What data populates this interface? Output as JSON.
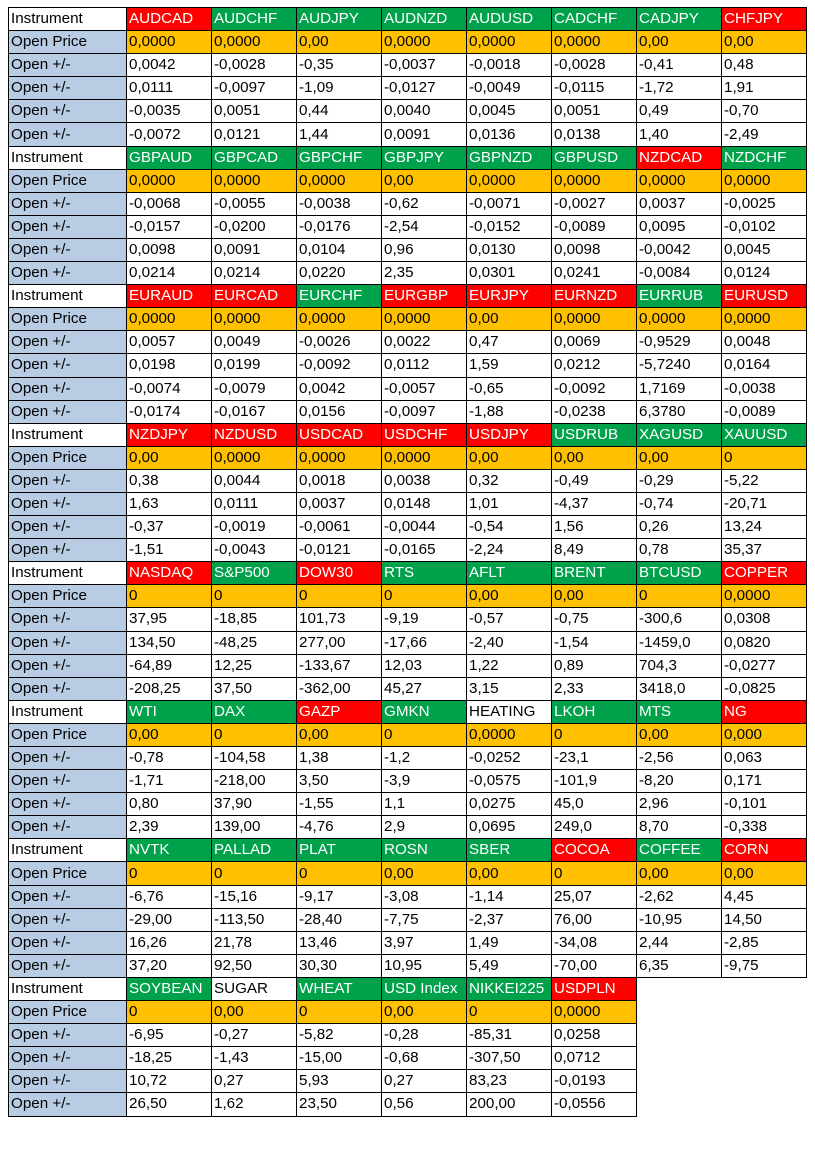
{
  "labels": {
    "instrument": "Instrument",
    "open_price": "Open Price",
    "open_change": "Open +/-"
  },
  "colors": {
    "red": "#ff0000",
    "green": "#00a14b",
    "open_price_bg": "#ffc000",
    "label_bg": "#b8cce4"
  },
  "blocks": [
    {
      "instruments": [
        {
          "name": "AUDCAD",
          "color": "red"
        },
        {
          "name": "AUDCHF",
          "color": "green"
        },
        {
          "name": "AUDJPY",
          "color": "green"
        },
        {
          "name": "AUDNZD",
          "color": "green"
        },
        {
          "name": "AUDUSD",
          "color": "green"
        },
        {
          "name": "CADCHF",
          "color": "green"
        },
        {
          "name": "CADJPY",
          "color": "green"
        },
        {
          "name": "CHFJPY",
          "color": "red"
        }
      ],
      "open_price": [
        "0,0000",
        "0,0000",
        "0,00",
        "0,0000",
        "0,0000",
        "0,0000",
        "0,00",
        "0,00"
      ],
      "changes": [
        [
          "0,0042",
          "-0,0028",
          "-0,35",
          "-0,0037",
          "-0,0018",
          "-0,0028",
          "-0,41",
          "0,48"
        ],
        [
          "0,0111",
          "-0,0097",
          "-1,09",
          "-0,0127",
          "-0,0049",
          "-0,0115",
          "-1,72",
          "1,91"
        ],
        [
          "-0,0035",
          "0,0051",
          "0,44",
          "0,0040",
          "0,0045",
          "0,0051",
          "0,49",
          "-0,70"
        ],
        [
          "-0,0072",
          "0,0121",
          "1,44",
          "0,0091",
          "0,0136",
          "0,0138",
          "1,40",
          "-2,49"
        ]
      ]
    },
    {
      "instruments": [
        {
          "name": "GBPAUD",
          "color": "green"
        },
        {
          "name": "GBPCAD",
          "color": "green"
        },
        {
          "name": "GBPCHF",
          "color": "green"
        },
        {
          "name": "GBPJPY",
          "color": "green"
        },
        {
          "name": "GBPNZD",
          "color": "green"
        },
        {
          "name": "GBPUSD",
          "color": "green"
        },
        {
          "name": "NZDCAD",
          "color": "red"
        },
        {
          "name": "NZDCHF",
          "color": "green"
        }
      ],
      "open_price": [
        "0,0000",
        "0,0000",
        "0,0000",
        "0,00",
        "0,0000",
        "0,0000",
        "0,0000",
        "0,0000"
      ],
      "changes": [
        [
          "-0,0068",
          "-0,0055",
          "-0,0038",
          "-0,62",
          "-0,0071",
          "-0,0027",
          "0,0037",
          "-0,0025"
        ],
        [
          "-0,0157",
          "-0,0200",
          "-0,0176",
          "-2,54",
          "-0,0152",
          "-0,0089",
          "0,0095",
          "-0,0102"
        ],
        [
          "0,0098",
          "0,0091",
          "0,0104",
          "0,96",
          "0,0130",
          "0,0098",
          "-0,0042",
          "0,0045"
        ],
        [
          "0,0214",
          "0,0214",
          "0,0220",
          "2,35",
          "0,0301",
          "0,0241",
          "-0,0084",
          "0,0124"
        ]
      ]
    },
    {
      "instruments": [
        {
          "name": "EURAUD",
          "color": "red"
        },
        {
          "name": "EURCAD",
          "color": "red"
        },
        {
          "name": "EURCHF",
          "color": "green"
        },
        {
          "name": "EURGBP",
          "color": "red"
        },
        {
          "name": "EURJPY",
          "color": "red"
        },
        {
          "name": "EURNZD",
          "color": "red"
        },
        {
          "name": "EURRUB",
          "color": "green"
        },
        {
          "name": "EURUSD",
          "color": "red"
        }
      ],
      "open_price": [
        "0,0000",
        "0,0000",
        "0,0000",
        "0,0000",
        "0,00",
        "0,0000",
        "0,0000",
        "0,0000"
      ],
      "changes": [
        [
          "0,0057",
          "0,0049",
          "-0,0026",
          "0,0022",
          "0,47",
          "0,0069",
          "-0,9529",
          "0,0048"
        ],
        [
          "0,0198",
          "0,0199",
          "-0,0092",
          "0,0112",
          "1,59",
          "0,0212",
          "-5,7240",
          "0,0164"
        ],
        [
          "-0,0074",
          "-0,0079",
          "0,0042",
          "-0,0057",
          "-0,65",
          "-0,0092",
          "1,7169",
          "-0,0038"
        ],
        [
          "-0,0174",
          "-0,0167",
          "0,0156",
          "-0,0097",
          "-1,88",
          "-0,0238",
          "6,3780",
          "-0,0089"
        ]
      ]
    },
    {
      "instruments": [
        {
          "name": "NZDJPY",
          "color": "red"
        },
        {
          "name": "NZDUSD",
          "color": "red"
        },
        {
          "name": "USDCAD",
          "color": "red"
        },
        {
          "name": "USDCHF",
          "color": "red"
        },
        {
          "name": "USDJPY",
          "color": "red"
        },
        {
          "name": "USDRUB",
          "color": "green"
        },
        {
          "name": "XAGUSD",
          "color": "green"
        },
        {
          "name": "XAUUSD",
          "color": "green"
        }
      ],
      "open_price": [
        "0,00",
        "0,0000",
        "0,0000",
        "0,0000",
        "0,00",
        "0,00",
        "0,00",
        "0"
      ],
      "changes": [
        [
          "0,38",
          "0,0044",
          "0,0018",
          "0,0038",
          "0,32",
          "-0,49",
          "-0,29",
          "-5,22"
        ],
        [
          "1,63",
          "0,0111",
          "0,0037",
          "0,0148",
          "1,01",
          "-4,37",
          "-0,74",
          "-20,71"
        ],
        [
          "-0,37",
          "-0,0019",
          "-0,0061",
          "-0,0044",
          "-0,54",
          "1,56",
          "0,26",
          "13,24"
        ],
        [
          "-1,51",
          "-0,0043",
          "-0,0121",
          "-0,0165",
          "-2,24",
          "8,49",
          "0,78",
          "35,37"
        ]
      ]
    },
    {
      "instruments": [
        {
          "name": "NASDAQ",
          "color": "red"
        },
        {
          "name": "S&P500",
          "color": "green"
        },
        {
          "name": "DOW30",
          "color": "red"
        },
        {
          "name": "RTS",
          "color": "green"
        },
        {
          "name": "AFLT",
          "color": "green"
        },
        {
          "name": "BRENT",
          "color": "green"
        },
        {
          "name": "BTCUSD",
          "color": "green"
        },
        {
          "name": "COPPER",
          "color": "red"
        }
      ],
      "open_price": [
        "0",
        "0",
        "0",
        "0",
        "0,00",
        "0,00",
        "0",
        "0,0000"
      ],
      "changes": [
        [
          "37,95",
          "-18,85",
          "101,73",
          "-9,19",
          "-0,57",
          "-0,75",
          "-300,6",
          "0,0308"
        ],
        [
          "134,50",
          "-48,25",
          "277,00",
          "-17,66",
          "-2,40",
          "-1,54",
          "-1459,0",
          "0,0820"
        ],
        [
          "-64,89",
          "12,25",
          "-133,67",
          "12,03",
          "1,22",
          "0,89",
          "704,3",
          "-0,0277"
        ],
        [
          "-208,25",
          "37,50",
          "-362,00",
          "45,27",
          "3,15",
          "2,33",
          "3418,0",
          "-0,0825"
        ]
      ]
    },
    {
      "instruments": [
        {
          "name": "WTI",
          "color": "green"
        },
        {
          "name": "DAX",
          "color": "green"
        },
        {
          "name": "GAZP",
          "color": "red"
        },
        {
          "name": "GMKN",
          "color": "green"
        },
        {
          "name": "HEATING",
          "color": "none"
        },
        {
          "name": "LKOH",
          "color": "green"
        },
        {
          "name": "MTS",
          "color": "green"
        },
        {
          "name": "NG",
          "color": "red"
        }
      ],
      "open_price": [
        "0,00",
        "0",
        "0,00",
        "0",
        "0,0000",
        "0",
        "0,00",
        "0,000"
      ],
      "changes": [
        [
          "-0,78",
          "-104,58",
          "1,38",
          "-1,2",
          "-0,0252",
          "-23,1",
          "-2,56",
          "0,063"
        ],
        [
          "-1,71",
          "-218,00",
          "3,50",
          "-3,9",
          "-0,0575",
          "-101,9",
          "-8,20",
          "0,171"
        ],
        [
          "0,80",
          "37,90",
          "-1,55",
          "1,1",
          "0,0275",
          "45,0",
          "2,96",
          "-0,101"
        ],
        [
          "2,39",
          "139,00",
          "-4,76",
          "2,9",
          "0,0695",
          "249,0",
          "8,70",
          "-0,338"
        ]
      ]
    },
    {
      "instruments": [
        {
          "name": "NVTK",
          "color": "green"
        },
        {
          "name": "PALLAD",
          "color": "green"
        },
        {
          "name": "PLAT",
          "color": "green"
        },
        {
          "name": "ROSN",
          "color": "green"
        },
        {
          "name": "SBER",
          "color": "green"
        },
        {
          "name": "COCOA",
          "color": "red"
        },
        {
          "name": "COFFEE",
          "color": "green"
        },
        {
          "name": "CORN",
          "color": "red"
        }
      ],
      "open_price": [
        "0",
        "0",
        "0",
        "0,00",
        "0,00",
        "0",
        "0,00",
        "0,00"
      ],
      "changes": [
        [
          "-6,76",
          "-15,16",
          "-9,17",
          "-3,08",
          "-1,14",
          "25,07",
          "-2,62",
          "4,45"
        ],
        [
          "-29,00",
          "-113,50",
          "-28,40",
          "-7,75",
          "-2,37",
          "76,00",
          "-10,95",
          "14,50"
        ],
        [
          "16,26",
          "21,78",
          "13,46",
          "3,97",
          "1,49",
          "-34,08",
          "2,44",
          "-2,85"
        ],
        [
          "37,20",
          "92,50",
          "30,30",
          "10,95",
          "5,49",
          "-70,00",
          "6,35",
          "-9,75"
        ]
      ]
    },
    {
      "instruments": [
        {
          "name": "SOYBEAN",
          "color": "green"
        },
        {
          "name": "SUGAR",
          "color": "none"
        },
        {
          "name": "WHEAT",
          "color": "green"
        },
        {
          "name": "USD Index",
          "color": "green"
        },
        {
          "name": "NIKKEI225",
          "color": "green"
        },
        {
          "name": "USDPLN",
          "color": "red"
        }
      ],
      "open_price": [
        "0",
        "0,00",
        "0",
        "0,00",
        "0",
        "0,0000"
      ],
      "changes": [
        [
          "-6,95",
          "-0,27",
          "-5,82",
          "-0,28",
          "-85,31",
          "0,0258"
        ],
        [
          "-18,25",
          "-1,43",
          "-15,00",
          "-0,68",
          "-307,50",
          "0,0712"
        ],
        [
          "10,72",
          "0,27",
          "5,93",
          "0,27",
          "83,23",
          "-0,0193"
        ],
        [
          "26,50",
          "1,62",
          "23,50",
          "0,56",
          "200,00",
          "-0,0556"
        ]
      ]
    }
  ]
}
